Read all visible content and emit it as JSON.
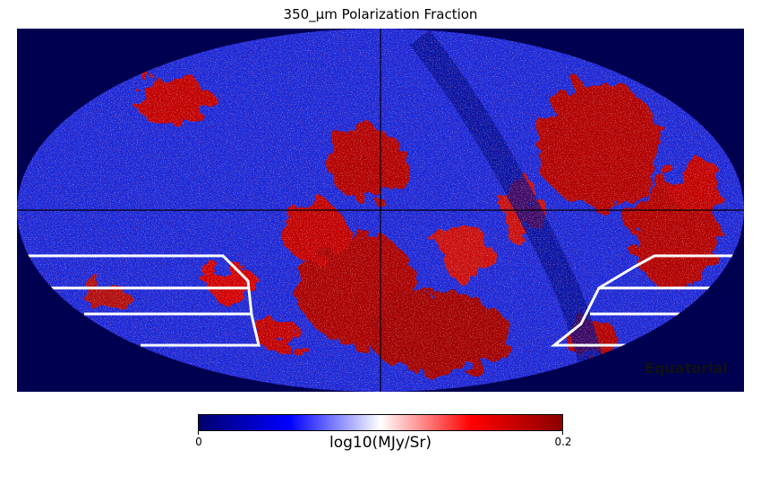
{
  "figure": {
    "title": "350_μm Polarization Fraction",
    "coordinate_system": "Equatorial",
    "projection": "mollweide",
    "background_color": "#000050",
    "map_colors": {
      "low": "#00006e",
      "mid_low": "#0000ff",
      "mid": "#ffffff",
      "mid_high": "#ff0000",
      "high": "#8b0000"
    }
  },
  "colorbar": {
    "label": "log10(MJy/Sr)",
    "min_label": "0",
    "max_label": "0.2",
    "min": 0,
    "max": 0.2,
    "colormap": [
      "#00006e",
      "#0000ff",
      "#ffffff",
      "#ff0000",
      "#8b0000"
    ]
  }
}
